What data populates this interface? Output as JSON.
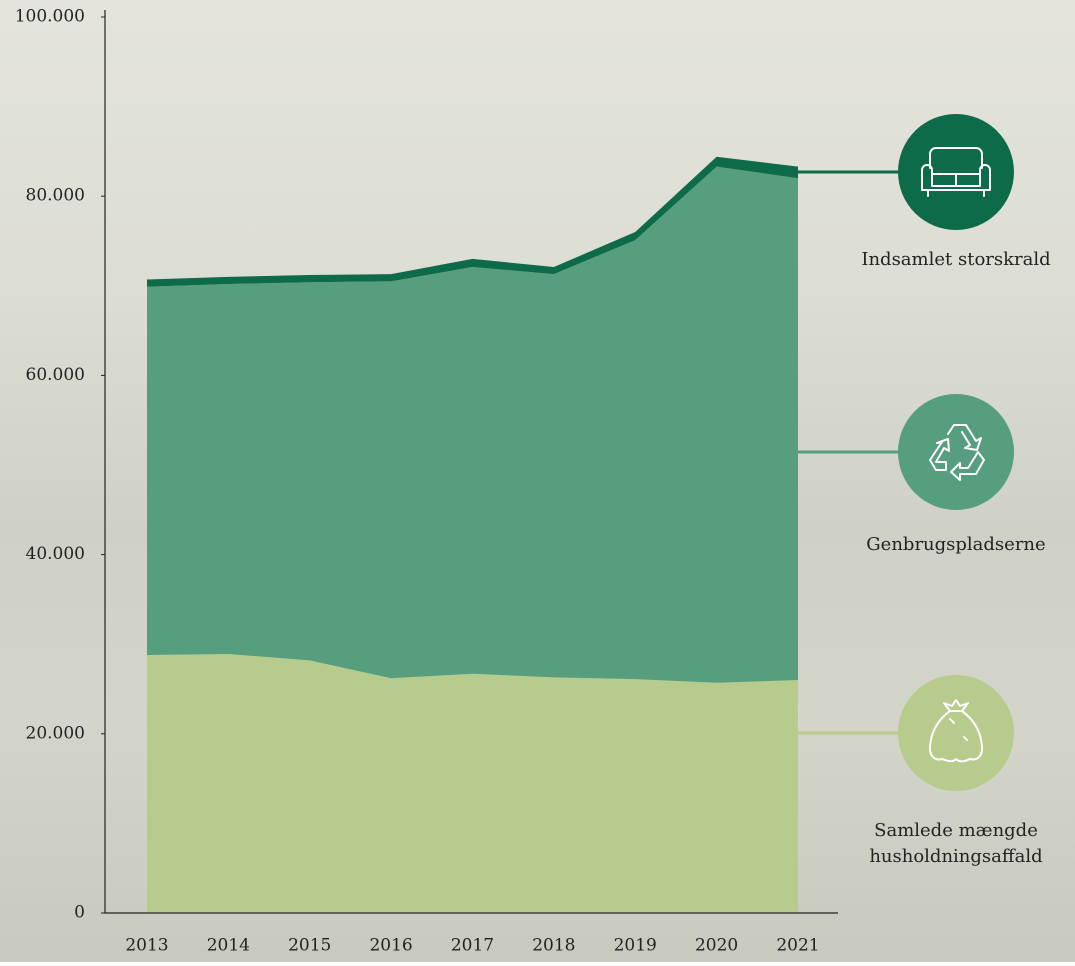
{
  "chart_data": {
    "type": "stacked-area",
    "categories": [
      "2013",
      "2014",
      "2015",
      "2016",
      "2017",
      "2018",
      "2019",
      "2020",
      "2021"
    ],
    "series": [
      {
        "name": "Samlede mængde husholdningsaffald",
        "color": "#b7cb8c",
        "values": [
          28800,
          28900,
          28200,
          26200,
          26700,
          26300,
          26100,
          25700,
          26000
        ]
      },
      {
        "name": "Genbrugspladserne",
        "color": "#569e7d",
        "values": [
          41100,
          41300,
          42200,
          44300,
          45400,
          45000,
          49000,
          57600,
          56000
        ]
      },
      {
        "name": "Indsamlet storskrald",
        "color": "#0e6b4a",
        "values": [
          800,
          800,
          800,
          800,
          900,
          800,
          900,
          1100,
          1300
        ]
      }
    ],
    "ylim": [
      0,
      100000
    ],
    "yticks": [
      0,
      {
        "value": 20000,
        "label": "20.000"
      },
      {
        "value": 40000,
        "label": "40.000"
      },
      {
        "value": 60000,
        "label": "60.000"
      },
      {
        "value": 80000,
        "label": "80.000"
      },
      {
        "value": 100000,
        "label": "100.000"
      }
    ],
    "grid": false
  }
}
